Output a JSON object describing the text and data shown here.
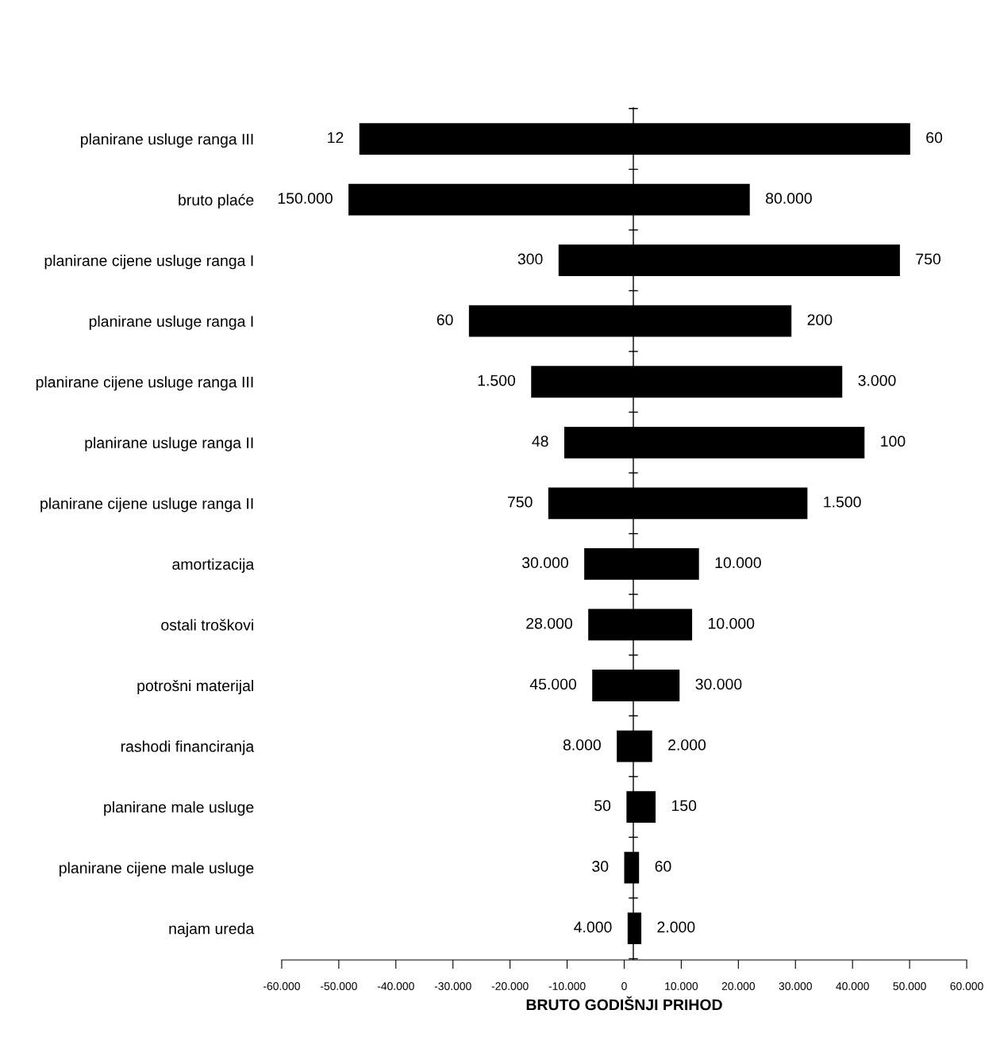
{
  "chart_data": {
    "type": "bar",
    "orientation": "horizontal",
    "xlabel": "BRUTO GODIŠNJI PRIHOD",
    "categories": [
      "planirane usluge ranga III",
      "bruto plaće",
      "planirane cijene usluge ranga I",
      "planirane usluge ranga I",
      "planirane cijene usluge ranga III",
      "planirane usluge ranga II",
      "planirane cijene usluge ranga II",
      "amortizacija",
      "ostali troškovi",
      "potrošni materijal",
      "rashodi financiranja",
      "planirane male usluge",
      "planirane cijene male usluge",
      "najam ureda"
    ],
    "base": [
      -46400,
      -48300,
      -11500,
      -27200,
      -16300,
      -10500,
      -13300,
      -7000,
      -6300,
      -5600,
      -1300,
      400,
      0,
      600
    ],
    "values": [
      96500,
      70300,
      59800,
      56500,
      54500,
      52600,
      45400,
      20100,
      18200,
      15300,
      6200,
      5100,
      2600,
      2400
    ],
    "color": "#000000",
    "xlim": [
      -60000,
      60000
    ],
    "xticks": [
      {
        "value": -60000,
        "label": "-60.000"
      },
      {
        "value": -50000,
        "label": "-50.000"
      },
      {
        "value": -40000,
        "label": "-40.000"
      },
      {
        "value": -30000,
        "label": "-30.000"
      },
      {
        "value": -20000,
        "label": "-20.000"
      },
      {
        "value": -10000,
        "label": "-10.000"
      },
      {
        "value": 0,
        "label": "0"
      },
      {
        "value": 10000,
        "label": "10.000"
      },
      {
        "value": 20000,
        "label": "20.000"
      },
      {
        "value": 30000,
        "label": "30.000"
      },
      {
        "value": 40000,
        "label": "40.000"
      },
      {
        "value": 50000,
        "label": "50.000"
      },
      {
        "value": 60000,
        "label": "60.000"
      }
    ],
    "ref_lines": [
      {
        "axis": "x",
        "value": 1600,
        "color": "#000000"
      }
    ],
    "grid": false,
    "annotations": [
      {
        "text": "12",
        "x": -46400,
        "y": "planirane usluge ranga III"
      },
      {
        "text": "60",
        "x": 50100,
        "y": "planirane usluge ranga III"
      },
      {
        "text": "150.000",
        "x": -48300,
        "y": "bruto plaće"
      },
      {
        "text": "80.000",
        "x": 22000,
        "y": "bruto plaće"
      },
      {
        "text": "300",
        "x": -11500,
        "y": "planirane cijene usluge ranga I"
      },
      {
        "text": "750",
        "x": 48300,
        "y": "planirane cijene usluge ranga I"
      },
      {
        "text": "60",
        "x": -27200,
        "y": "planirane usluge ranga I"
      },
      {
        "text": "200",
        "x": 29300,
        "y": "planirane usluge ranga I"
      },
      {
        "text": "1.500",
        "x": -16300,
        "y": "planirane cijene usluge ranga III"
      },
      {
        "text": "3.000",
        "x": 38200,
        "y": "planirane cijene usluge ranga III"
      },
      {
        "text": "48",
        "x": -10500,
        "y": "planirane usluge ranga II"
      },
      {
        "text": "100",
        "x": 42100,
        "y": "planirane usluge ranga II"
      },
      {
        "text": "750",
        "x": -13300,
        "y": "planirane cijene usluge ranga II"
      },
      {
        "text": "1.500",
        "x": 32100,
        "y": "planirane cijene usluge ranga II"
      },
      {
        "text": "30.000",
        "x": -7000,
        "y": "amortizacija"
      },
      {
        "text": "10.000",
        "x": 13100,
        "y": "amortizacija"
      },
      {
        "text": "28.000",
        "x": -6300,
        "y": "ostali troškovi"
      },
      {
        "text": "10.000",
        "x": 11900,
        "y": "ostali troškovi"
      },
      {
        "text": "45.000",
        "x": -5600,
        "y": "potrošni materijal"
      },
      {
        "text": "30.000",
        "x": 9700,
        "y": "potrošni materijal"
      },
      {
        "text": "8.000",
        "x": -1300,
        "y": "rashodi financiranja"
      },
      {
        "text": "2.000",
        "x": 4900,
        "y": "rashodi financiranja"
      },
      {
        "text": "50",
        "x": 400,
        "y": "planirane male usluge"
      },
      {
        "text": "150",
        "x": 5500,
        "y": "planirane male usluge"
      },
      {
        "text": "30",
        "x": 0,
        "y": "planirane cijene male usluge"
      },
      {
        "text": "60",
        "x": 2600,
        "y": "planirane cijene male usluge"
      },
      {
        "text": "4.000",
        "x": 600,
        "y": "najam ureda"
      },
      {
        "text": "2.000",
        "x": 3000,
        "y": "najam ureda"
      }
    ]
  }
}
